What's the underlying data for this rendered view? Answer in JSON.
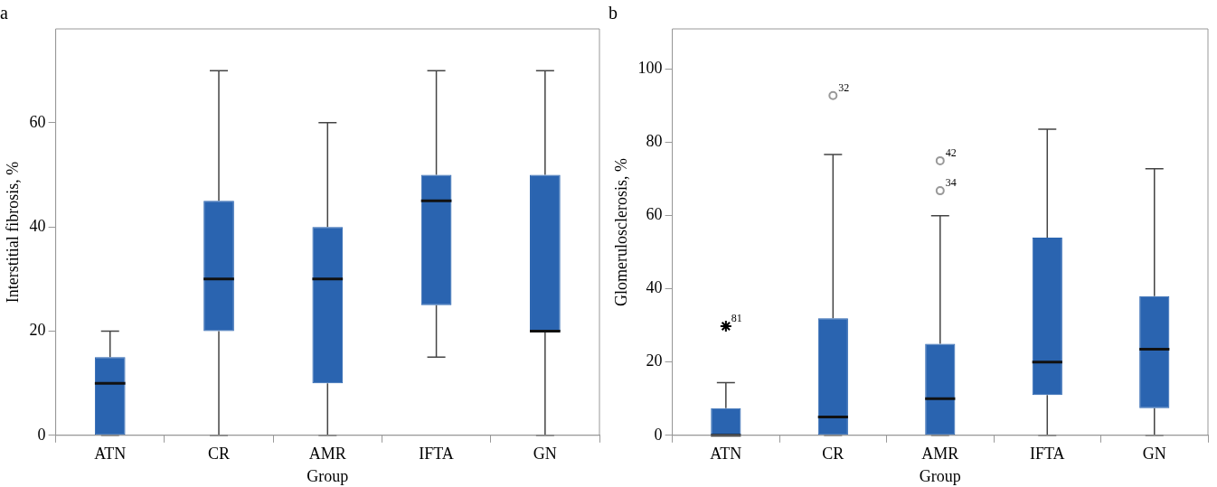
{
  "chart_data": [
    {
      "type": "box",
      "title": "a",
      "xlabel": "Group",
      "ylabel": "Interstitial fibrosis, %",
      "categories": [
        "ATN",
        "CR",
        "AMR",
        "IFTA",
        "GN"
      ],
      "color": "#2a64b0",
      "ylim": [
        0,
        78
      ],
      "yticks": [
        0,
        20,
        40,
        60
      ],
      "grid": false,
      "legend": false,
      "boxes": [
        {
          "low": 0,
          "q1": 0,
          "median": 10,
          "q3": 15,
          "high": 20
        },
        {
          "low": 0,
          "q1": 20,
          "median": 30,
          "q3": 45,
          "high": 70
        },
        {
          "low": 0,
          "q1": 10,
          "median": 30,
          "q3": 40,
          "high": 60
        },
        {
          "low": 15,
          "q1": 25,
          "median": 45,
          "q3": 50,
          "high": 70
        },
        {
          "low": 0,
          "q1": 20,
          "median": 20,
          "q3": 50,
          "high": 70
        }
      ]
    },
    {
      "type": "box",
      "title": "b",
      "xlabel": "Group",
      "ylabel": "Glomerulosclerosis, %",
      "categories": [
        "ATN",
        "CR",
        "AMR",
        "IFTA",
        "GN"
      ],
      "color": "#2a64b0",
      "ylim": [
        0,
        111
      ],
      "yticks": [
        0,
        20,
        40,
        60,
        80,
        100
      ],
      "grid": false,
      "legend": false,
      "boxes": [
        {
          "low": 0,
          "q1": 0,
          "median": 0,
          "q3": 7.4,
          "high": 14.4
        },
        {
          "low": 0,
          "q1": 0,
          "median": 5,
          "q3": 32,
          "high": 76.7,
          "outliers": [
            92.8
          ]
        },
        {
          "low": 0,
          "q1": 0,
          "median": 10,
          "q3": 25,
          "high": 60,
          "outliers": [
            75,
            66.8
          ]
        },
        {
          "low": 0,
          "q1": 11,
          "median": 20,
          "q3": 54,
          "high": 83.6
        },
        {
          "low": 0,
          "q1": 7.4,
          "median": 23.5,
          "q3": 38,
          "high": 72.8
        }
      ],
      "series": [
        {
          "type": "scatter",
          "marker": "cross",
          "color": "#000000",
          "x": [
            "ATN"
          ],
          "values": [
            29.8
          ]
        }
      ],
      "annotations": [
        "32",
        "42",
        "34",
        {
          "text": "81",
          "x": "ATN",
          "y": 29.8
        }
      ]
    }
  ]
}
